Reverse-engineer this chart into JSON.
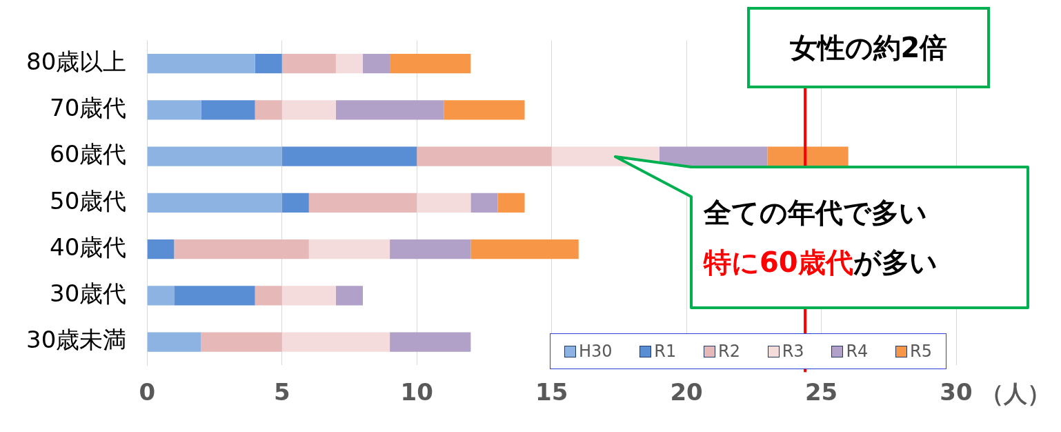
{
  "chart_data": {
    "type": "bar",
    "orientation": "horizontal",
    "stacked": true,
    "categories": [
      "80歳以上",
      "70歳代",
      "60歳代",
      "50歳代",
      "40歳代",
      "30歳代",
      "30歳未満"
    ],
    "series": [
      {
        "name": "H30",
        "color": "#8db3e2",
        "values": [
          4,
          2,
          5,
          5,
          0,
          1,
          2
        ]
      },
      {
        "name": "R1",
        "color": "#5a8ed4",
        "values": [
          1,
          2,
          5,
          1,
          1,
          3,
          0
        ]
      },
      {
        "name": "R2",
        "color": "#e6b9b8",
        "values": [
          2,
          1,
          5,
          4,
          5,
          1,
          3
        ]
      },
      {
        "name": "R3",
        "color": "#f4dcdc",
        "values": [
          1,
          2,
          4,
          2,
          3,
          2,
          4
        ]
      },
      {
        "name": "R4",
        "color": "#b1a0c7",
        "values": [
          1,
          4,
          4,
          1,
          3,
          1,
          3
        ]
      },
      {
        "name": "R5",
        "color": "#f79646",
        "values": [
          3,
          3,
          3,
          1,
          4,
          0,
          0
        ]
      }
    ],
    "xlim": [
      0,
      30
    ],
    "xticks": [
      0,
      5,
      10,
      15,
      20,
      25,
      30
    ],
    "xlabel": "（人）",
    "ref_lines": [
      {
        "axis": "x",
        "value": 24.4,
        "color": "#ff0000"
      }
    ],
    "annotations": [
      "女性の約2倍",
      "全ての年代で多い",
      "特に60歳代が多い"
    ],
    "grid": "x",
    "legend": "bottom right"
  }
}
